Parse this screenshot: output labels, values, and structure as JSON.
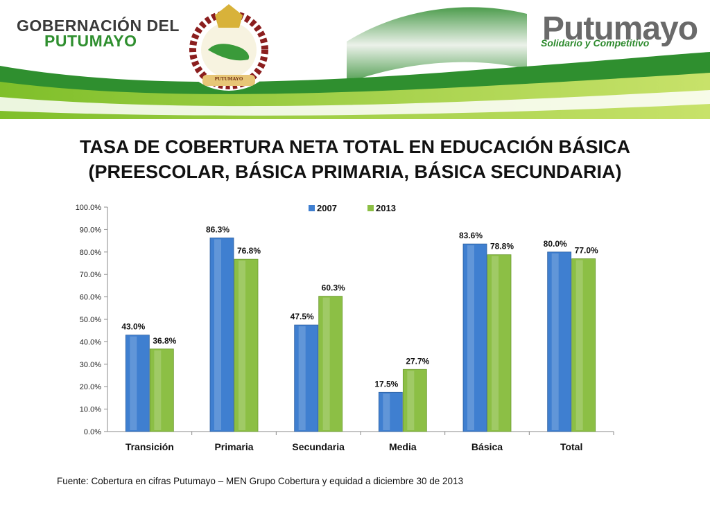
{
  "header": {
    "gov_line1": "GOBERNACIÓN DEL",
    "gov_line2": "PUTUMAYO",
    "seal_text": "PUTUMAYO",
    "brand_name": "Putumayo",
    "brand_tagline": "Solidario y Competitivo"
  },
  "title": {
    "line1": "TASA DE COBERTURA NETA TOTAL EN EDUCACIÓN BÁSICA",
    "line2": "(PREESCOLAR, BÁSICA PRIMARIA, BÁSICA SECUNDARIA)"
  },
  "source": "Fuente: Cobertura en cifras Putumayo – MEN Grupo Cobertura y equidad a diciembre 30 de 2013",
  "colors": {
    "series_2007": "#3f7fd0",
    "series_2013": "#8cbf45",
    "green_banner": "#3e9a2e",
    "light_green_banner": "#9acd3c"
  },
  "chart_data": {
    "type": "bar",
    "categories": [
      "Transición",
      "Primaria",
      "Secundaria",
      "Media",
      "Básica",
      "Total"
    ],
    "series": [
      {
        "name": "2007",
        "values": [
          43.0,
          86.3,
          47.5,
          17.5,
          83.6,
          80.0
        ],
        "labels": [
          "43.0%",
          "86.3%",
          "47.5%",
          "17.5%",
          "83.6%",
          "80.0%"
        ]
      },
      {
        "name": "2013",
        "values": [
          36.8,
          76.8,
          60.3,
          27.7,
          78.8,
          77.0
        ],
        "labels": [
          "36.8%",
          "76.8%",
          "60.3%",
          "27.7%",
          "78.8%",
          "77.0%"
        ]
      }
    ],
    "ylim": [
      0,
      100
    ],
    "yticks": [
      "0.0%",
      "10.0%",
      "20.0%",
      "30.0%",
      "40.0%",
      "50.0%",
      "60.0%",
      "70.0%",
      "80.0%",
      "90.0%",
      "100.0%"
    ],
    "legend_position": "top",
    "grid": false
  }
}
